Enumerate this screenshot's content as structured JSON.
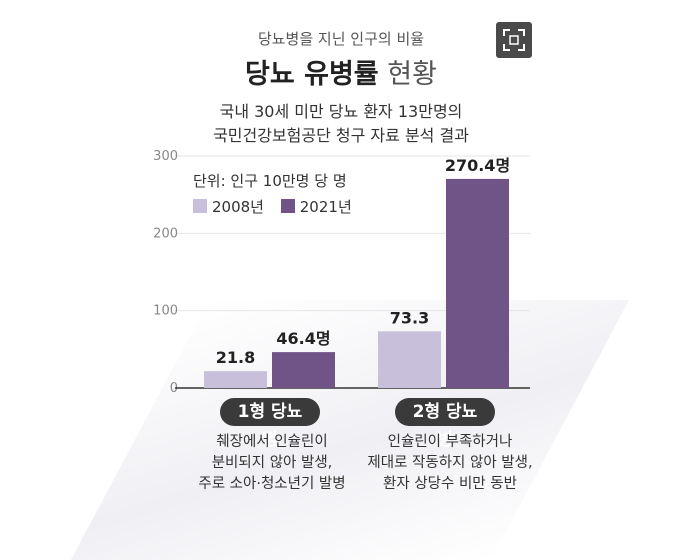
{
  "header": {
    "subtitle": "당뇨병을 지닌 인구의 비율",
    "title_strong": "당뇨 유병률",
    "title_light": "현황",
    "desc_line1": "국내 30세 미만 당뇨 환자 13만명의",
    "desc_line2": "국민건강보험공단 청구 자료 분석 결과",
    "expand_icon": "expand-icon"
  },
  "colors": {
    "series_2008": "#c8c0da",
    "series_2021": "#705488",
    "axis": "#333333",
    "grid": "#e6e6e6",
    "pill_bg": "#3a3a3a"
  },
  "chart_data": {
    "type": "bar",
    "unit_label": "단위: 인구 10만명 당 명",
    "categories": [
      "1형 당뇨병",
      "2형 당뇨병"
    ],
    "series": [
      {
        "name": "2008년",
        "values": [
          21.8,
          73.3
        ],
        "labels": [
          "21.8",
          "73.3"
        ]
      },
      {
        "name": "2021년",
        "values": [
          46.4,
          270.4
        ],
        "labels": [
          "46.4명",
          "270.4명"
        ]
      }
    ],
    "yticks": [
      0,
      100,
      200,
      300
    ],
    "ylim": [
      0,
      300
    ],
    "legend_position": "top-left",
    "grid": false
  },
  "notes": [
    "췌장에서 인슐린이\n분비되지 않아 발생,\n주로 소아·청소년기 발병",
    "인슐린이 부족하거나\n제대로 작동하지 않아 발생,\n환자 상당수 비만 동반"
  ]
}
